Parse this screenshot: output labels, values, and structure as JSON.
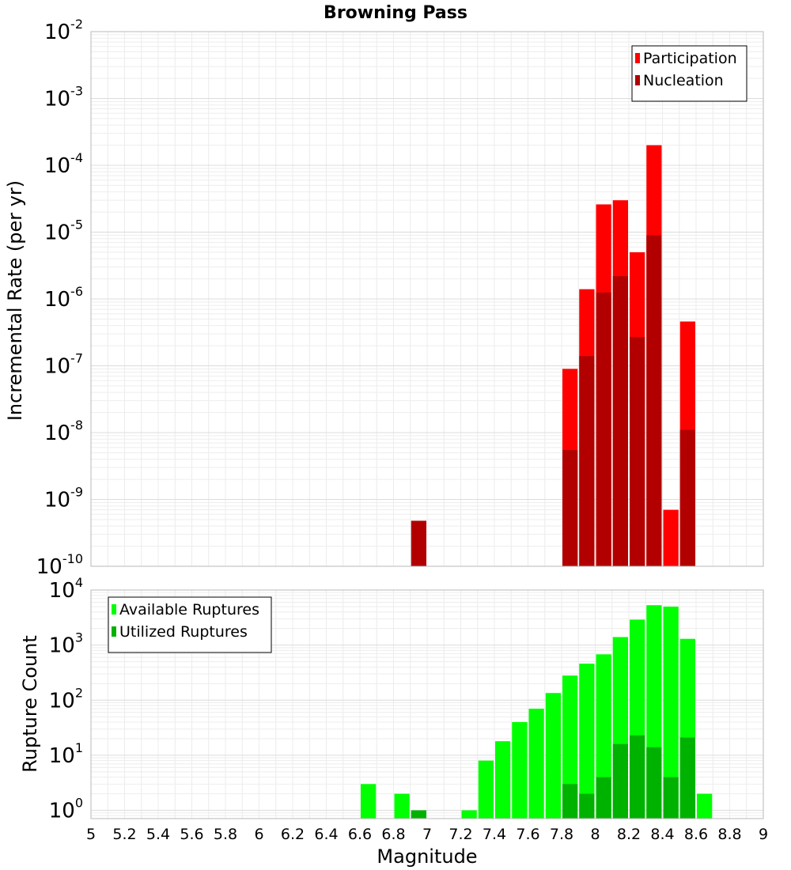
{
  "chart_data": [
    {
      "type": "bar",
      "title": "Browning Pass",
      "ylabel": "Incremental Rate (per yr)",
      "xlabel": "",
      "yscale": "log",
      "ylim_exponents": [
        -10,
        -2
      ],
      "ytick_base": "10",
      "ytick_exponents": [
        "-10",
        "-9",
        "-8",
        "-7",
        "-6",
        "-5",
        "-4",
        "-3",
        "-2"
      ],
      "xlim": [
        5,
        9
      ],
      "bar_width": 0.1,
      "legend_position": "top-right",
      "series": [
        {
          "name": "Participation",
          "color": "#ff0000",
          "x": [
            7.85,
            7.95,
            8.05,
            8.15,
            8.25,
            8.35,
            8.45,
            8.55
          ],
          "values": [
            9e-08,
            1.4e-06,
            2.6e-05,
            3e-05,
            5e-06,
            0.0002,
            7e-10,
            4.6e-07
          ]
        },
        {
          "name": "Nucleation",
          "color": "#b20000",
          "x": [
            6.95,
            7.85,
            7.95,
            8.05,
            8.15,
            8.25,
            8.35,
            8.55
          ],
          "values": [
            4.8e-10,
            5.5e-09,
            1.4e-07,
            1.25e-06,
            2.2e-06,
            2.7e-07,
            9e-06,
            1.1e-08
          ]
        }
      ]
    },
    {
      "type": "bar",
      "title": "",
      "ylabel": "Rupture Count",
      "xlabel": "Magnitude",
      "yscale": "log",
      "ylim_exponents": [
        -0.15,
        4
      ],
      "ytick_base": "10",
      "ytick_exponents": [
        "0",
        "1",
        "2",
        "3",
        "4"
      ],
      "xlim": [
        5,
        9
      ],
      "xtick_labels": [
        "5",
        "5.2",
        "5.4",
        "5.6",
        "5.8",
        "6",
        "6.2",
        "6.4",
        "6.6",
        "6.8",
        "7",
        "7.2",
        "7.4",
        "7.6",
        "7.8",
        "8",
        "8.2",
        "8.4",
        "8.6",
        "8.8",
        "9"
      ],
      "bar_width": 0.1,
      "legend_position": "top-left",
      "series": [
        {
          "name": "Available Ruptures",
          "color": "#00ff00",
          "x": [
            6.65,
            6.85,
            6.95,
            7.25,
            7.35,
            7.45,
            7.55,
            7.65,
            7.75,
            7.85,
            7.95,
            8.05,
            8.15,
            8.25,
            8.35,
            8.45,
            8.55,
            8.65
          ],
          "values": [
            3,
            2,
            1,
            1,
            8,
            18,
            40,
            70,
            135,
            280,
            460,
            680,
            1400,
            2900,
            5300,
            5000,
            1300,
            2
          ]
        },
        {
          "name": "Utilized Ruptures",
          "color": "#00b200",
          "x": [
            6.95,
            7.85,
            7.95,
            8.05,
            8.15,
            8.25,
            8.35,
            8.45,
            8.55
          ],
          "values": [
            1,
            3,
            2,
            4,
            16,
            23,
            14,
            4,
            21
          ]
        }
      ]
    }
  ]
}
